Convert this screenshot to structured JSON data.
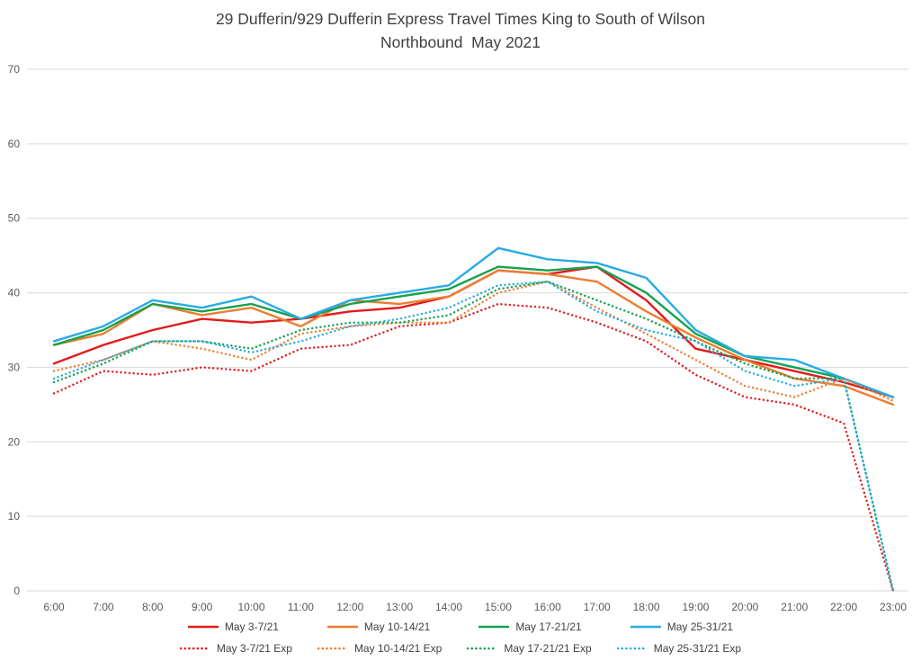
{
  "title": {
    "line1": "29 Dufferin/929 Dufferin Express Travel Times King to South of Wilson",
    "line2": "Northbound  May 2021"
  },
  "chart_data": {
    "type": "line",
    "title": "29 Dufferin/929 Dufferin Express Travel Times King to South of Wilson Northbound May 2021",
    "xlabel": "",
    "ylabel": "",
    "x": [
      "6:00",
      "7:00",
      "8:00",
      "9:00",
      "10:00",
      "11:00",
      "12:00",
      "13:00",
      "14:00",
      "15:00",
      "16:00",
      "17:00",
      "18:00",
      "19:00",
      "20:00",
      "21:00",
      "22:00",
      "23:00"
    ],
    "ylim": [
      0,
      70
    ],
    "y_ticks": [
      0,
      10,
      20,
      30,
      40,
      50,
      60,
      70
    ],
    "grid": true,
    "legend_position": "bottom",
    "layout": {
      "gridline_color": "#d9d9d9",
      "axis_text_color": "#595959",
      "title_text_color": "#404040",
      "legend_text_color": "#404040"
    },
    "series": [
      {
        "name": "May 3-7/21",
        "style": "solid",
        "color": "#e31b1c",
        "values": [
          30.5,
          33,
          35,
          36.5,
          36,
          36.5,
          37.5,
          38,
          39.5,
          43,
          42.5,
          43.5,
          39,
          32.5,
          31,
          29.5,
          28,
          26
        ]
      },
      {
        "name": "May 10-14/21",
        "style": "solid",
        "color": "#ed7d31",
        "values": [
          33,
          34.5,
          38.5,
          37,
          38,
          35.5,
          39,
          38.5,
          39.5,
          43,
          42.5,
          41.5,
          37.5,
          34,
          31,
          28.5,
          27.5,
          25
        ]
      },
      {
        "name": "May 17-21/21",
        "style": "solid",
        "color": "#16a14e",
        "values": [
          33,
          35,
          38.5,
          37.5,
          38.5,
          36.5,
          38.5,
          39.5,
          40.5,
          43.5,
          43,
          43.5,
          40,
          34.5,
          31.5,
          30,
          28.5,
          26
        ]
      },
      {
        "name": "May 25-31/21",
        "style": "solid",
        "color": "#29abe2",
        "values": [
          33.5,
          35.5,
          39,
          38,
          39.5,
          36.5,
          39,
          40,
          41,
          46,
          44.5,
          44,
          42,
          35,
          31.5,
          31,
          28.5,
          26
        ]
      },
      {
        "name": "May 3-7/21 Exp",
        "style": "dotted",
        "color": "#e31b1c",
        "values": [
          26.5,
          29.5,
          29,
          30,
          29.5,
          32.5,
          33,
          35.5,
          36,
          38.5,
          38,
          36,
          33.5,
          29,
          26,
          25,
          22.5,
          0
        ]
      },
      {
        "name": "May 10-14/21 Exp",
        "style": "dotted",
        "color": "#ed7d31",
        "values": [
          29.5,
          31,
          33.5,
          32.5,
          31,
          34.5,
          35.5,
          36,
          36,
          40,
          41.5,
          38,
          34.5,
          31,
          27.5,
          26,
          28.5,
          25.5
        ]
      },
      {
        "name": "May 17-21/21 Exp",
        "style": "dotted",
        "color": "#16a14e",
        "values": [
          28,
          30.5,
          33.5,
          33.5,
          32.5,
          35,
          36,
          36,
          37,
          40.5,
          41.5,
          39,
          36.5,
          33.5,
          30.5,
          28.5,
          28.5,
          0
        ]
      },
      {
        "name": "May 25-31/21 Exp",
        "style": "dotted",
        "color": "#29abe2",
        "values": [
          28.5,
          31,
          33.5,
          33.5,
          32,
          33.5,
          35.5,
          36.5,
          38,
          41,
          41.5,
          37.5,
          35,
          33.5,
          29.5,
          27.5,
          28.5,
          0
        ]
      }
    ]
  }
}
